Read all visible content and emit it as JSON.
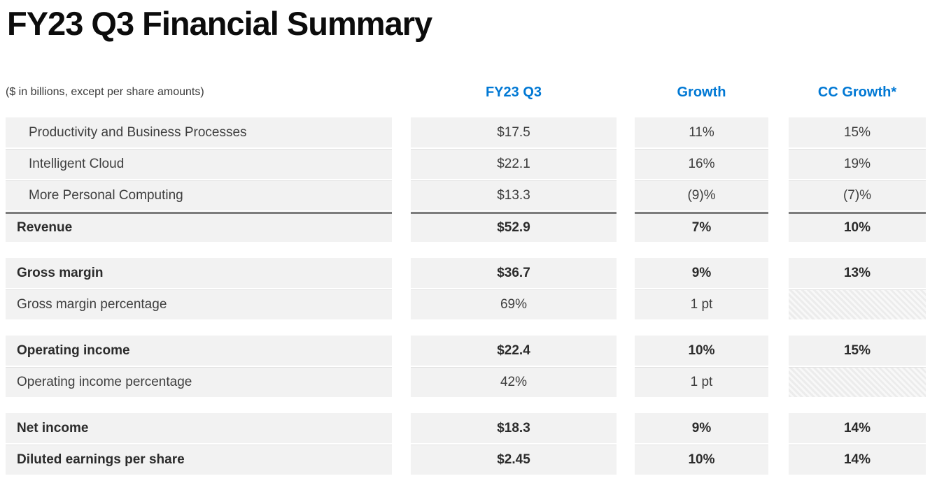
{
  "page": {
    "title": "FY23 Q3 Financial Summary"
  },
  "table": {
    "caption": "($ in billions, except per share amounts)",
    "columns": {
      "fy23q3": "FY23 Q3",
      "growth": "Growth",
      "cc_growth": "CC Growth*"
    },
    "colors": {
      "accent": "#0078d4",
      "cell_background": "#f2f2f2",
      "total_rule": "#7d7d7d",
      "body_text": "#3e3e3e",
      "bold_text": "#2b2b2b"
    },
    "sections": [
      {
        "rows": [
          {
            "label": "Productivity and Business Processes",
            "fy23q3": "$17.5",
            "growth": "11%",
            "cc_growth": "15%"
          },
          {
            "label": "Intelligent Cloud",
            "fy23q3": "$22.1",
            "growth": "16%",
            "cc_growth": "19%"
          },
          {
            "label": "More Personal Computing",
            "fy23q3": "$13.3",
            "growth": "(9)%",
            "cc_growth": "(7)%"
          },
          {
            "label": "Revenue",
            "fy23q3": "$52.9",
            "growth": "7%",
            "cc_growth": "10%"
          }
        ]
      },
      {
        "rows": [
          {
            "label": "Gross margin",
            "fy23q3": "$36.7",
            "growth": "9%",
            "cc_growth": "13%"
          },
          {
            "label": "Gross margin percentage",
            "fy23q3": "69%",
            "growth": "1 pt",
            "cc_growth_hatched": true
          }
        ]
      },
      {
        "rows": [
          {
            "label": "Operating income",
            "fy23q3": "$22.4",
            "growth": "10%",
            "cc_growth": "15%"
          },
          {
            "label": "Operating income percentage",
            "fy23q3": "42%",
            "growth": "1 pt",
            "cc_growth_hatched": true
          }
        ]
      },
      {
        "rows": [
          {
            "label": "Net income",
            "fy23q3": "$18.3",
            "growth": "9%",
            "cc_growth": "14%"
          },
          {
            "label": "Diluted earnings per share",
            "fy23q3": "$2.45",
            "growth": "10%",
            "cc_growth": "14%"
          }
        ]
      }
    ]
  },
  "chart_data": {
    "type": "table",
    "title": "FY23 Q3 Financial Summary",
    "note": "($ in billions, except per share amounts)",
    "columns": [
      "",
      "FY23 Q3",
      "Growth",
      "CC Growth*"
    ],
    "rows": [
      [
        "Productivity and Business Processes",
        "$17.5",
        "11%",
        "15%"
      ],
      [
        "Intelligent Cloud",
        "$22.1",
        "16%",
        "19%"
      ],
      [
        "More Personal Computing",
        "$13.3",
        "(9)%",
        "(7)%"
      ],
      [
        "Revenue",
        "$52.9",
        "7%",
        "10%"
      ],
      [
        "Gross margin",
        "$36.7",
        "9%",
        "13%"
      ],
      [
        "Gross margin percentage",
        "69%",
        "1 pt",
        null
      ],
      [
        "Operating income",
        "$22.4",
        "10%",
        "15%"
      ],
      [
        "Operating income percentage",
        "42%",
        "1 pt",
        null
      ],
      [
        "Net income",
        "$18.3",
        "9%",
        "14%"
      ],
      [
        "Diluted earnings per share",
        "$2.45",
        "10%",
        "14%"
      ]
    ]
  }
}
